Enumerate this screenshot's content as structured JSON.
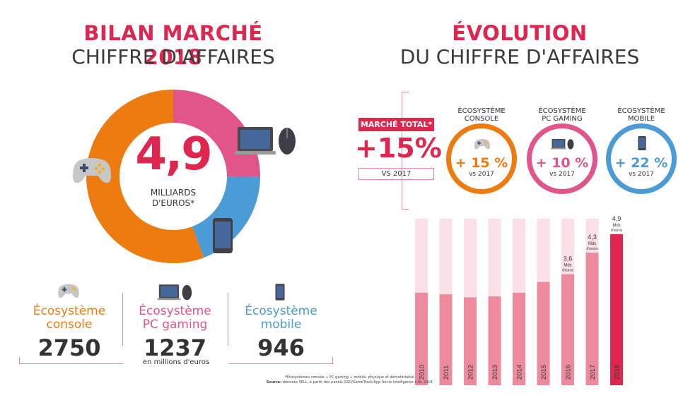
{
  "left": {
    "title_line1": "BILAN MARCHÉ 2018",
    "title_line2": "CHIFFRE D'AFFAIRES",
    "donut": {
      "value": "4,9",
      "unit_line1": "MILLIARDS",
      "unit_line2": "D'EUROS*"
    },
    "categories": [
      {
        "label_line1": "Écosystème",
        "label_line2": "console",
        "value": "2750",
        "icon": "gamepad-icon"
      },
      {
        "label_line1": "Écosystème",
        "label_line2": "PC gaming",
        "value": "1237",
        "icon": "laptop-mouse-icon"
      },
      {
        "label_line1": "Écosystème",
        "label_line2": "mobile",
        "value": "946",
        "icon": "smartphone-icon"
      }
    ],
    "unit_note": "en millions d'euros"
  },
  "right": {
    "title_line1": "ÉVOLUTION",
    "title_line2": "DU CHIFFRE D'AFFAIRES",
    "market": {
      "label": "MARCHÉ TOTAL*",
      "value": "+15%",
      "vs": "VS 2017"
    },
    "ecosystems": [
      {
        "label_line1": "ÉCOSYSTÈME",
        "label_line2": "CONSOLE",
        "value": "+ 15 %",
        "vs": "vs 2017",
        "icon": "gamepad-icon"
      },
      {
        "label_line1": "ÉCOSYSTÈME",
        "label_line2": "PC GAMING",
        "value": "+ 10 %",
        "vs": "vs 2017",
        "icon": "laptop-mouse-icon"
      },
      {
        "label_line1": "ÉCOSYSTÈME",
        "label_line2": "MOBILE",
        "value": "+ 22 %",
        "vs": "vs 2017",
        "icon": "smartphone-icon"
      }
    ]
  },
  "footnote": {
    "line1": "*Écosystèmes console + PC gaming + mobile, physique et dématérialisé.",
    "source_label": "Source:",
    "source_text": "données SELL, à partir des panels GSD/GameTrack/App Annie Intelligence à fin 2018."
  },
  "colors": {
    "red": "#e0264f",
    "orange": "#ee7b0f",
    "pink": "#e2558b",
    "blue": "#4b9bd7",
    "bar": "#ee8a9e",
    "bar_track": "#fbe1e7",
    "bar_last": "#e0264f"
  },
  "chart_data": [
    {
      "type": "pie",
      "categories": [
        "Écosystème console",
        "Écosystème PC gaming",
        "Écosystème mobile"
      ],
      "values": [
        2750,
        1237,
        946
      ],
      "center_text": "4,9 MILLIARDS D'EUROS*"
    },
    {
      "type": "bar",
      "categories": [
        "2010",
        "2011",
        "2012",
        "2013",
        "2014",
        "2015",
        "2016",
        "2017",
        "2018"
      ],
      "values": [
        3.0,
        2.95,
        2.85,
        2.88,
        3.0,
        3.35,
        3.6,
        4.3,
        4.9
      ],
      "ylim": [
        0,
        5.4
      ],
      "data_labels": [
        {
          "category": "2016",
          "value": "3,6",
          "unit_line1": "Mds",
          "unit_line2": "d'euros"
        },
        {
          "category": "2017",
          "value": "4,3",
          "unit_line1": "Mds",
          "unit_line2": "d'euros"
        },
        {
          "category": "2018",
          "value": "4,9",
          "unit_line1": "Mds",
          "unit_line2": "d'euros"
        }
      ]
    }
  ]
}
